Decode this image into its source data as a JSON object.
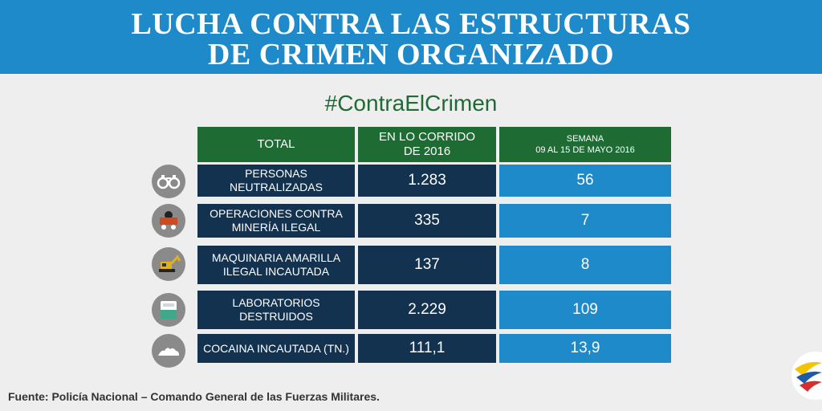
{
  "banner": {
    "line1": "LUCHA CONTRA LAS ESTRUCTURAS",
    "line2": "DE CRIMEN ORGANIZADO"
  },
  "hashtag": "#ContraElCrimen",
  "chart_data": {
    "type": "table",
    "columns": [
      "TOTAL",
      "EN LO CORRIDO DE 2016",
      "SEMANA 09 AL 15 DE MAYO 2016"
    ],
    "header": {
      "total": "TOTAL",
      "ytd_line1": "EN LO CORRIDO",
      "ytd_line2": "DE 2016",
      "week_line1": "SEMANA",
      "week_line2": "09 AL 15 DE MAYO 2016"
    },
    "rows": [
      {
        "icon": "handcuffs-icon",
        "label_line1": "PERSONAS NEUTRALIZADAS",
        "label_line2": "",
        "ytd": "1.283",
        "week": "56"
      },
      {
        "icon": "mine-cart-icon",
        "label_line1": "OPERACIONES CONTRA",
        "label_line2": "MINERÍA ILEGAL",
        "ytd": "335",
        "week": "7"
      },
      {
        "icon": "excavator-icon",
        "label_line1": "MAQUINARIA AMARILLA",
        "label_line2": "ILEGAL INCAUTADA",
        "ytd": "137",
        "week": "8"
      },
      {
        "icon": "lab-container-icon",
        "label_line1": "LABORATORIOS",
        "label_line2": "DESTRUIDOS",
        "ytd": "2.229",
        "week": "109"
      },
      {
        "icon": "cocaine-pile-icon",
        "label_line1": "COCAINA INCAUTADA (TN.)",
        "label_line2": "",
        "ytd": "111,1",
        "week": "13,9"
      }
    ]
  },
  "footer": "Fuente: Policía Nacional – Comando General de las Fuerzas Militares.",
  "colors": {
    "banner_blue": "#1e8ac9",
    "header_green": "#1e6b34",
    "navy": "#12324f",
    "week_blue": "#1e8ac9"
  },
  "logo_icon": "colombia-flag-swoosh-logo-icon"
}
